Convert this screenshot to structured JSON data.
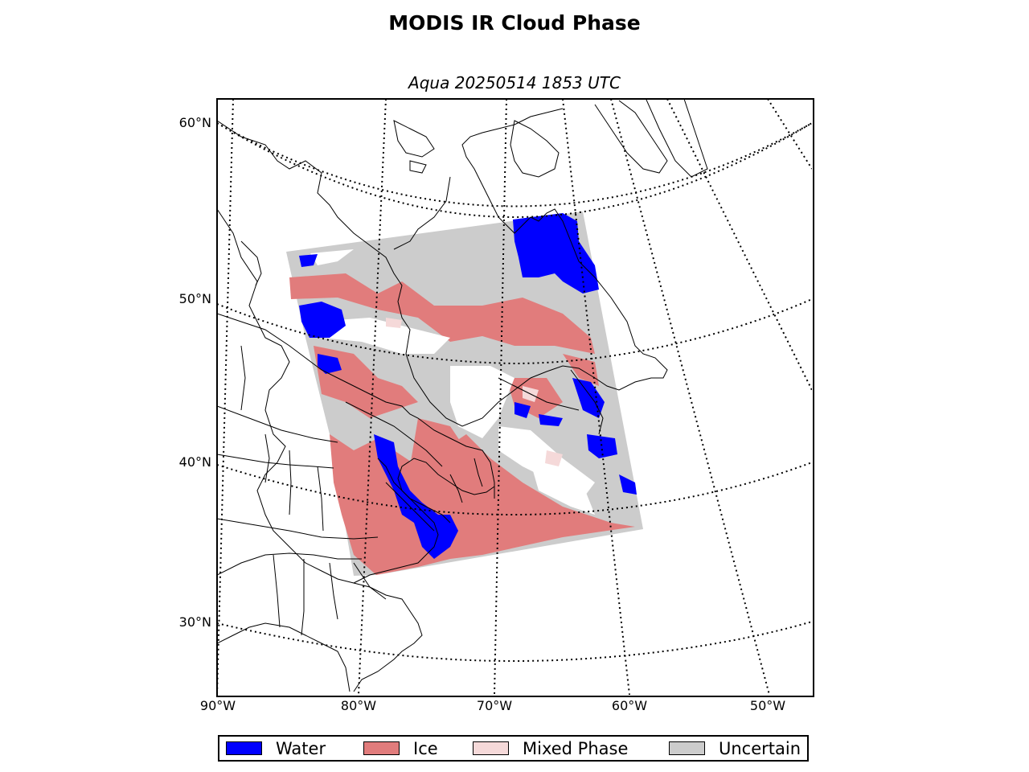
{
  "title": "MODIS IR Cloud Phase",
  "subtitle": "Aqua 20250514 1853 UTC",
  "lat_labels": [
    "60°N",
    "50°N",
    "40°N",
    "30°N"
  ],
  "lon_labels": [
    "90°W",
    "80°W",
    "70°W",
    "60°W",
    "50°W"
  ],
  "legend": [
    {
      "label": "Water",
      "color": "#0000ff"
    },
    {
      "label": "Ice",
      "color": "#e17c7c"
    },
    {
      "label": "Mixed Phase",
      "color": "#f5d9d9"
    },
    {
      "label": "Uncertain",
      "color": "#cccccc"
    }
  ]
}
